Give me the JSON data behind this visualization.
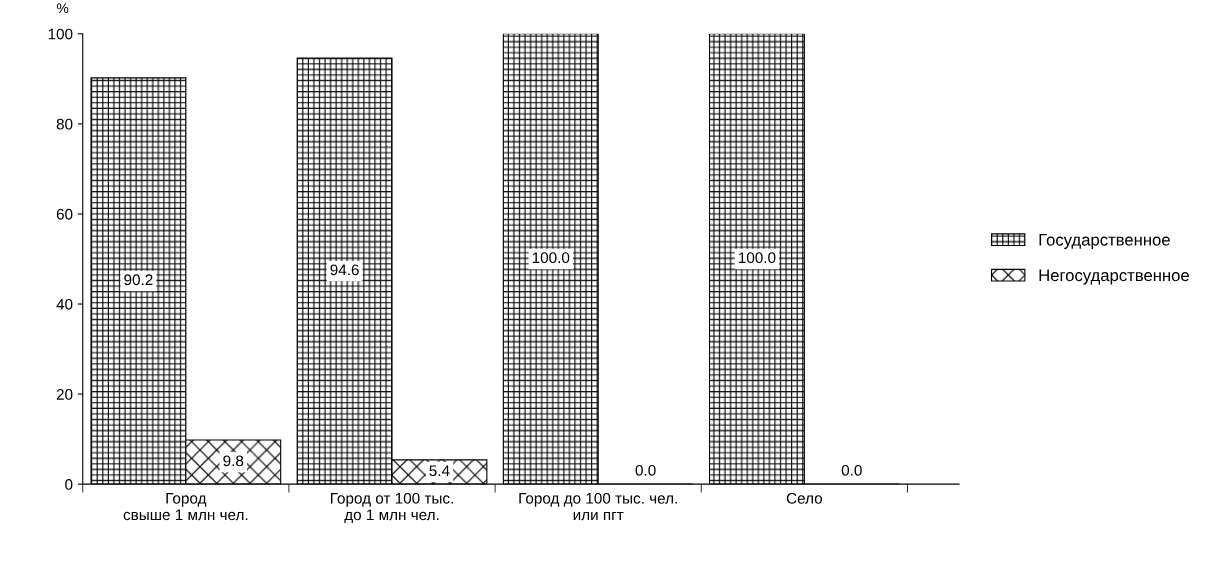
{
  "chart_data": {
    "type": "bar",
    "ylabel": "%",
    "categories": [
      "Город\nсвыше 1 млн чел.",
      "Город от 100 тыс.\nдо 1 млн чел.",
      "Город до 100 тыс. чел.\nили пгт",
      "Село"
    ],
    "series": [
      {
        "name": "Государственное",
        "color": "#000000",
        "values": [
          90.2,
          94.6,
          100.0,
          100.0
        ]
      },
      {
        "name": "Негосударственное",
        "color": "#000000",
        "values": [
          9.8,
          5.4,
          0.0,
          0.0
        ]
      }
    ],
    "value_labels": [
      [
        "90.2",
        "94.6",
        "100.0",
        "100.0"
      ],
      [
        "9.8",
        "5.4",
        "0.0",
        "0.0"
      ]
    ],
    "ylim": [
      0,
      100
    ],
    "yticks": [
      0,
      20,
      40,
      60,
      80,
      100
    ],
    "grid": false,
    "legend": "right"
  }
}
